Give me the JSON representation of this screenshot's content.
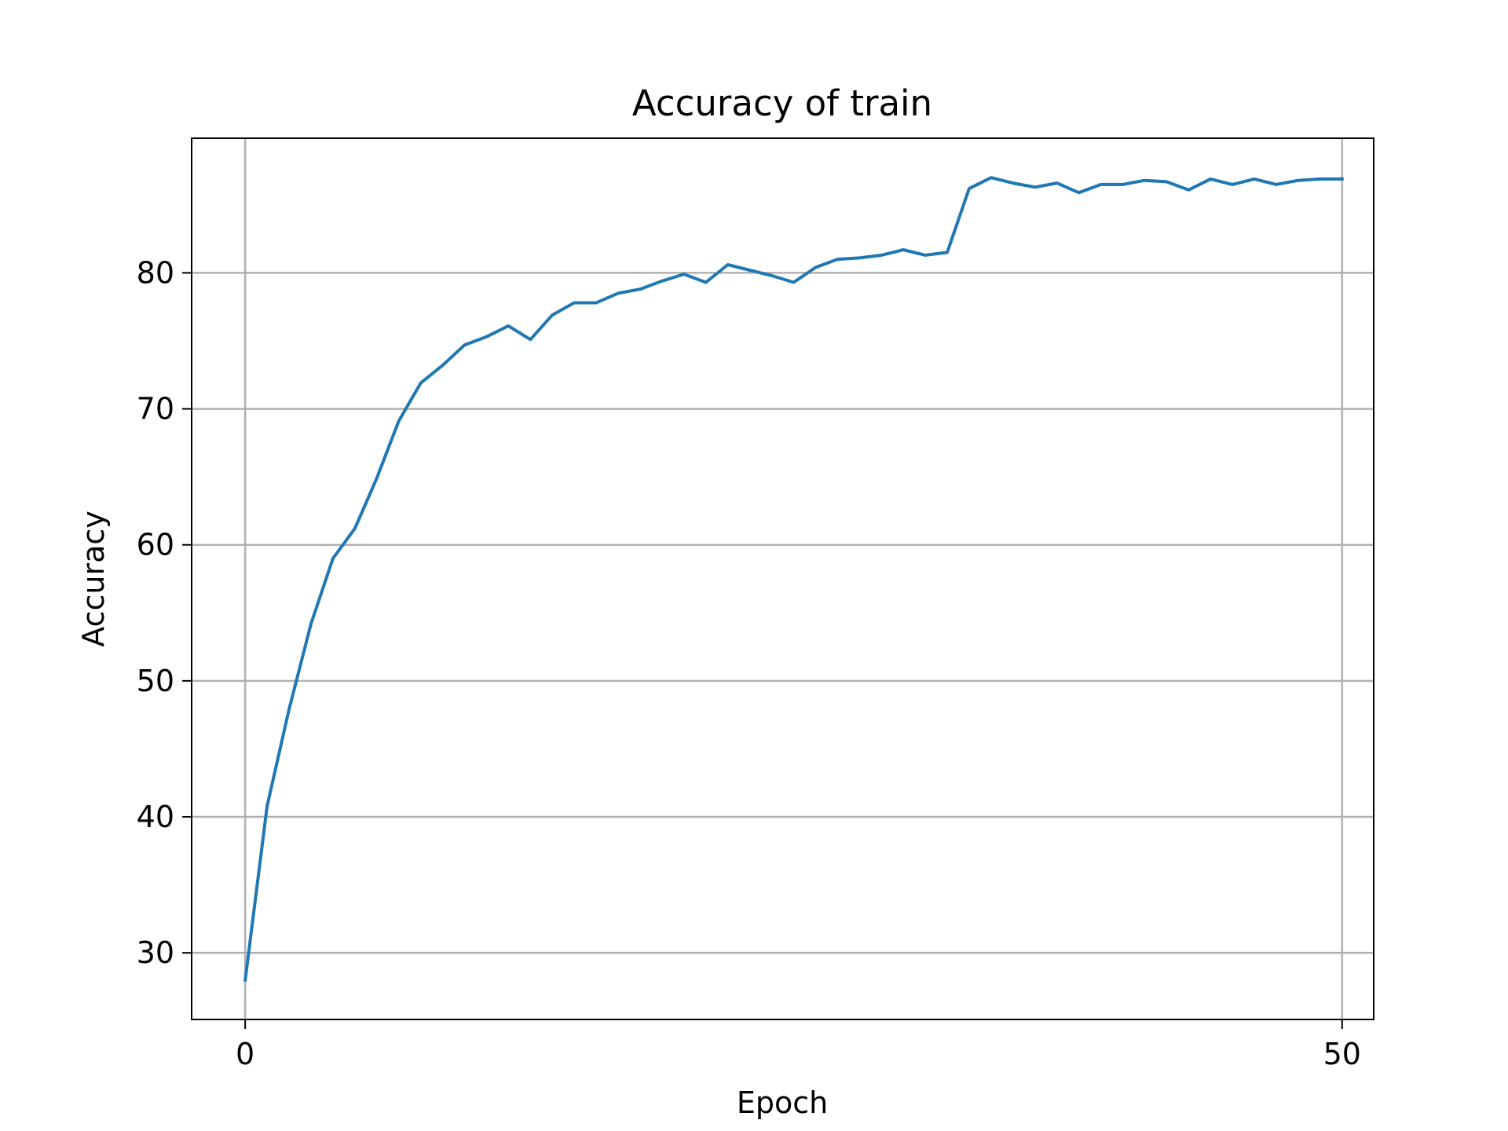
{
  "chart_data": {
    "type": "line",
    "title": "Accuracy of train",
    "xlabel": "Epoch",
    "ylabel": "Accuracy",
    "xlim": [
      -2.44,
      51.44
    ],
    "ylim": [
      25.1,
      89.9
    ],
    "xticks": [
      0,
      50
    ],
    "yticks": [
      30,
      40,
      50,
      60,
      70,
      80
    ],
    "grid": true,
    "series": [
      {
        "color": "#1f77b4",
        "x": [
          0,
          1,
          2,
          3,
          4,
          5,
          6,
          7,
          8,
          9,
          10,
          11,
          12,
          13,
          14,
          15,
          16,
          17,
          18,
          19,
          20,
          21,
          22,
          23,
          24,
          25,
          26,
          27,
          28,
          29,
          30,
          31,
          32,
          33,
          34,
          35,
          36,
          37,
          38,
          39,
          40,
          41,
          42,
          43,
          44,
          45,
          46,
          47,
          48,
          49,
          50
        ],
        "values": [
          28.0,
          40.8,
          47.9,
          54.2,
          59.0,
          61.2,
          64.9,
          69.1,
          71.9,
          73.2,
          74.7,
          75.3,
          76.1,
          75.1,
          76.9,
          77.8,
          77.8,
          78.5,
          78.8,
          79.4,
          79.9,
          79.3,
          80.6,
          80.2,
          79.8,
          79.3,
          80.4,
          81.0,
          81.1,
          81.3,
          81.7,
          81.3,
          81.5,
          86.2,
          87.0,
          86.6,
          86.3,
          86.6,
          85.9,
          86.5,
          86.5,
          86.8,
          86.7,
          86.1,
          86.9,
          86.5,
          86.9,
          86.5,
          86.8,
          86.9,
          86.9
        ]
      }
    ]
  }
}
